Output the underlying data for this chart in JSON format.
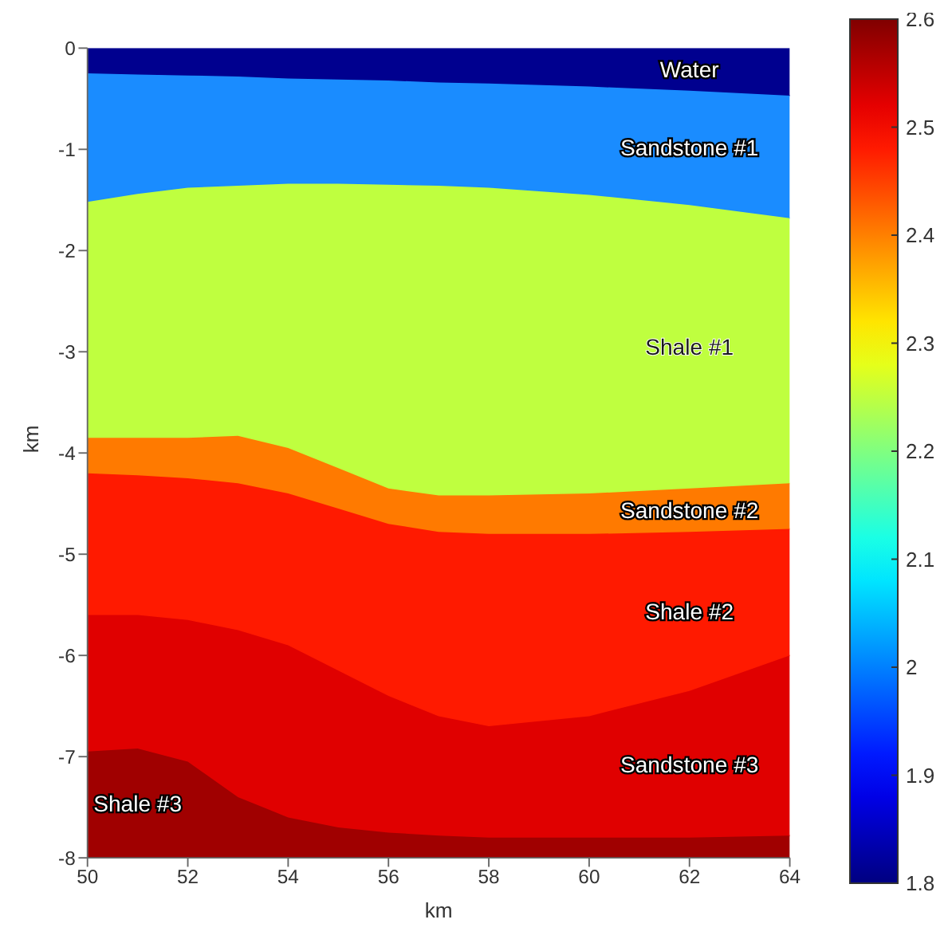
{
  "chart_data": {
    "type": "area",
    "stacked": true,
    "xlabel": "km",
    "ylabel": "km",
    "x": [
      50,
      51,
      52,
      53,
      54,
      55,
      56,
      57,
      58,
      60,
      62,
      64
    ],
    "xlim": [
      50,
      64
    ],
    "xticks": [
      50,
      52,
      54,
      56,
      58,
      60,
      62,
      64
    ],
    "ylim": [
      -8,
      0
    ],
    "yticks": [
      -8,
      -7,
      -6,
      -5,
      -4,
      -3,
      -2,
      -1,
      0
    ],
    "clim": [
      1.8,
      2.6
    ],
    "cticks": [
      1.8,
      1.9,
      2,
      2.1,
      2.2,
      2.3,
      2.4,
      2.5,
      2.6
    ],
    "legend": false,
    "grid": false,
    "series": [
      {
        "name": "Water",
        "color": "#00008f",
        "values": [
          -0.25,
          -0.26,
          -0.27,
          -0.28,
          -0.3,
          -0.31,
          -0.32,
          -0.34,
          -0.35,
          -0.38,
          -0.42,
          -0.47
        ]
      },
      {
        "name": "Sandstone #1",
        "color": "#1a8cff",
        "values": [
          -1.27,
          -1.18,
          -1.11,
          -1.08,
          -1.04,
          -1.03,
          -1.03,
          -1.02,
          -1.03,
          -1.07,
          -1.13,
          -1.21
        ]
      },
      {
        "name": "Shale #1",
        "color": "#bfff3f",
        "values": [
          -2.33,
          -2.41,
          -2.47,
          -2.47,
          -2.61,
          -2.81,
          -3.0,
          -3.06,
          -3.04,
          -2.95,
          -2.8,
          -2.62
        ]
      },
      {
        "name": "Sandstone #2",
        "color": "#ff7a00",
        "values": [
          -0.35,
          -0.37,
          -0.4,
          -0.47,
          -0.45,
          -0.4,
          -0.35,
          -0.36,
          -0.38,
          -0.4,
          -0.43,
          -0.45
        ]
      },
      {
        "name": "Shale #2",
        "color": "#ff1a00",
        "values": [
          -1.4,
          -1.38,
          -1.4,
          -1.45,
          -1.5,
          -1.6,
          -1.7,
          -1.82,
          -1.9,
          -1.8,
          -1.57,
          -1.25
        ]
      },
      {
        "name": "Sandstone #3",
        "color": "#e00000",
        "values": [
          -1.35,
          -1.32,
          -1.4,
          -1.65,
          -1.7,
          -1.55,
          -1.35,
          -1.18,
          -1.1,
          -1.2,
          -1.45,
          -1.78
        ]
      },
      {
        "name": "Shale #3",
        "color": "#a00000",
        "values": [
          -1.05,
          -1.08,
          -0.95,
          -0.6,
          -0.4,
          -0.3,
          -0.25,
          -0.22,
          -0.2,
          -0.2,
          -0.2,
          -0.22
        ]
      }
    ]
  }
}
